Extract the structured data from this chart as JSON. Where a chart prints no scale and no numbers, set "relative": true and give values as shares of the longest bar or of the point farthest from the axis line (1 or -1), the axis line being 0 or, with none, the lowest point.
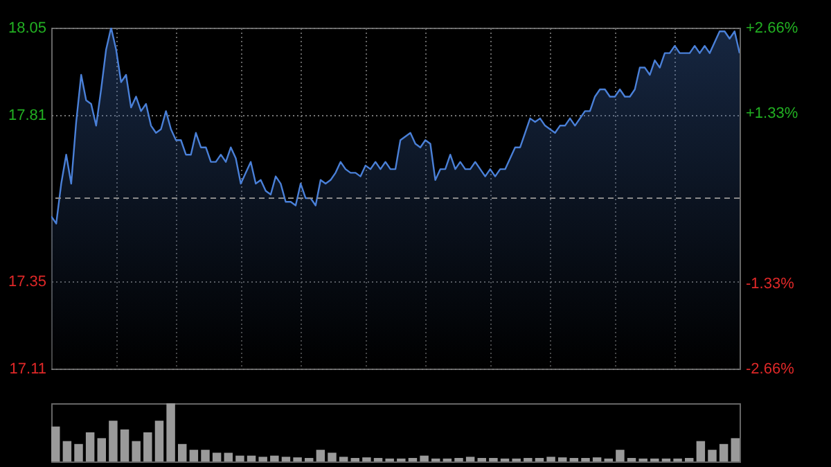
{
  "chart_data": [
    {
      "type": "area",
      "categories": [
        null,
        null,
        null,
        null,
        null,
        null,
        null,
        null,
        null,
        null,
        null,
        null,
        null,
        null,
        null,
        null,
        null,
        null,
        null,
        null,
        null,
        null,
        null,
        null,
        null,
        null,
        null,
        null,
        null,
        null,
        null,
        null,
        null,
        null,
        null,
        null,
        null,
        null,
        null,
        null,
        null,
        null,
        null,
        null,
        null,
        null,
        null,
        null,
        null,
        null,
        null,
        null,
        null,
        null,
        null,
        null,
        null,
        null,
        null,
        null,
        null,
        null,
        null,
        null,
        null,
        null,
        null,
        null,
        null,
        null,
        null,
        null,
        null,
        null,
        null,
        null,
        null,
        null,
        null,
        null,
        null,
        null,
        null,
        null,
        null,
        null,
        null,
        null,
        null,
        null,
        null,
        null,
        null,
        null,
        null,
        null,
        null,
        null,
        null,
        null,
        null,
        null,
        null,
        null,
        null,
        null,
        null,
        null,
        null,
        null,
        null,
        null,
        null,
        null,
        null,
        null,
        null,
        null,
        null,
        null,
        null,
        null,
        null,
        null,
        null,
        null,
        null,
        null,
        null,
        null,
        null,
        null,
        null,
        null,
        null,
        null,
        null,
        null,
        null
      ],
      "series": [
        {
          "color": "#4a80d8",
          "values": [
            17.53,
            17.51,
            17.62,
            17.7,
            17.62,
            17.79,
            17.92,
            17.85,
            17.84,
            17.78,
            17.88,
            17.99,
            18.05,
            17.99,
            17.9,
            17.92,
            17.83,
            17.86,
            17.82,
            17.84,
            17.78,
            17.76,
            17.77,
            17.82,
            17.77,
            17.74,
            17.74,
            17.7,
            17.7,
            17.76,
            17.72,
            17.72,
            17.68,
            17.68,
            17.7,
            17.68,
            17.72,
            17.69,
            17.62,
            17.65,
            17.68,
            17.62,
            17.63,
            17.6,
            17.59,
            17.64,
            17.62,
            17.57,
            17.57,
            17.56,
            17.62,
            17.58,
            17.58,
            17.56,
            17.63,
            17.62,
            17.63,
            17.65,
            17.68,
            17.66,
            17.65,
            17.65,
            17.64,
            17.67,
            17.66,
            17.68,
            17.66,
            17.68,
            17.66,
            17.66,
            17.74,
            17.75,
            17.76,
            17.73,
            17.72,
            17.74,
            17.73,
            17.63,
            17.66,
            17.66,
            17.7,
            17.66,
            17.68,
            17.66,
            17.66,
            17.68,
            17.66,
            17.64,
            17.66,
            17.64,
            17.66,
            17.66,
            17.69,
            17.72,
            17.72,
            17.76,
            17.8,
            17.79,
            17.8,
            17.78,
            17.77,
            17.76,
            17.78,
            17.78,
            17.8,
            17.78,
            17.8,
            17.82,
            17.82,
            17.86,
            17.88,
            17.88,
            17.86,
            17.86,
            17.88,
            17.86,
            17.86,
            17.88,
            17.94,
            17.94,
            17.92,
            17.96,
            17.94,
            17.98,
            17.98,
            18.0,
            17.98,
            17.98,
            17.98,
            18.0,
            17.98,
            18.0,
            17.98,
            18.01,
            18.04,
            18.04,
            18.02,
            18.04,
            17.98
          ]
        }
      ],
      "ylim": [
        17.11,
        18.05
      ],
      "yticks": [
        17.11,
        17.35,
        17.81,
        18.05
      ],
      "y2lim": [
        -2.66,
        2.66
      ],
      "y2ticks": [
        {
          "value": -2.66,
          "label": "-2.66%"
        },
        {
          "value": -1.33,
          "label": "-1.33%"
        },
        {
          "value": 1.33,
          "label": "+1.33%"
        },
        {
          "value": 2.66,
          "label": "+2.66%"
        }
      ],
      "ref_lines": [
        {
          "axis": "y2",
          "value": 0,
          "color": "#8a8a8a",
          "line_style": "dashed"
        }
      ],
      "grid": true
    },
    {
      "type": "bar",
      "relative": true,
      "color": "#9a9a9a",
      "categories": [
        null,
        null,
        null,
        null,
        null,
        null,
        null,
        null,
        null,
        null,
        null,
        null,
        null,
        null,
        null,
        null,
        null,
        null,
        null,
        null,
        null,
        null,
        null,
        null,
        null,
        null,
        null,
        null,
        null,
        null,
        null,
        null,
        null,
        null,
        null,
        null,
        null,
        null,
        null,
        null,
        null,
        null,
        null,
        null,
        null,
        null,
        null,
        null,
        null,
        null,
        null,
        null,
        null,
        null,
        null,
        null,
        null,
        null,
        null,
        null
      ],
      "values": [
        0.6,
        0.35,
        0.3,
        0.5,
        0.4,
        0.7,
        0.55,
        0.35,
        0.5,
        0.7,
        1.0,
        0.3,
        0.2,
        0.2,
        0.15,
        0.15,
        0.1,
        0.1,
        0.08,
        0.1,
        0.08,
        0.07,
        0.06,
        0.2,
        0.15,
        0.08,
        0.06,
        0.07,
        0.06,
        0.05,
        0.05,
        0.06,
        0.1,
        0.05,
        0.05,
        0.06,
        0.08,
        0.06,
        0.06,
        0.05,
        0.05,
        0.06,
        0.06,
        0.08,
        0.07,
        0.06,
        0.06,
        0.07,
        0.05,
        0.2,
        0.06,
        0.05,
        0.05,
        0.05,
        0.05,
        0.06,
        0.35,
        0.2,
        0.3,
        0.4
      ]
    }
  ]
}
